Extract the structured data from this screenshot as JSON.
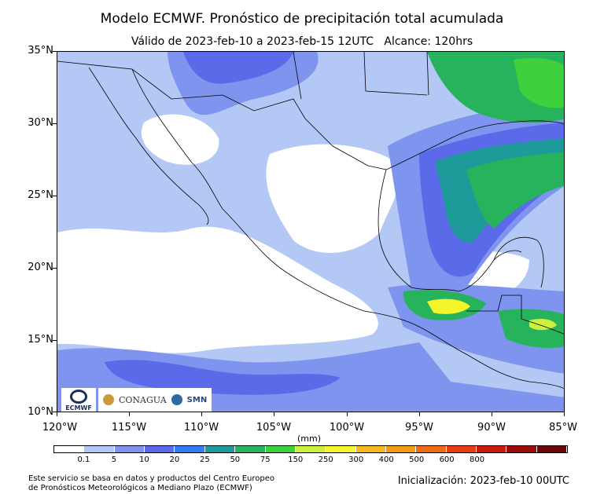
{
  "title": "Modelo ECMWF. Pronóstico de precipitación total acumulada",
  "subtitle": "Válido de 2023-feb-10 a 2023-feb-15 12UTC   Alcance: 120hrs",
  "axes": {
    "lat_labels": [
      "35°N",
      "30°N",
      "25°N",
      "20°N",
      "15°N",
      "10°N"
    ],
    "lon_labels": [
      "120°W",
      "115°W",
      "110°W",
      "105°W",
      "100°W",
      "95°W",
      "90°W",
      "85°W"
    ]
  },
  "colorbar": {
    "unit": "(mm)",
    "labels": [
      "0.1",
      "5",
      "10",
      "20",
      "25",
      "50",
      "75",
      "150",
      "250",
      "300",
      "400",
      "500",
      "600",
      "800"
    ],
    "colors": [
      "#ffffff",
      "#b4c8f5",
      "#7e94ee",
      "#5a6ae8",
      "#2f7ef5",
      "#1f9a9a",
      "#27b35c",
      "#3fd13d",
      "#cdf03c",
      "#f5f52c",
      "#f5b81e",
      "#f59a14",
      "#f06a14",
      "#e83b10",
      "#c81a0a",
      "#9b0a08",
      "#6d0606"
    ]
  },
  "logos": {
    "ecmwf": "ECMWF",
    "conagua": "CONAGUA",
    "smn": "SMN"
  },
  "footnote": "Este servicio se basa en datos y productos del Centro Europeo\nde Pronósticos Meteorológicos a Mediano Plazo (ECMWF)",
  "initialization": "Inicialización: 2023-feb-10 00UTC"
}
